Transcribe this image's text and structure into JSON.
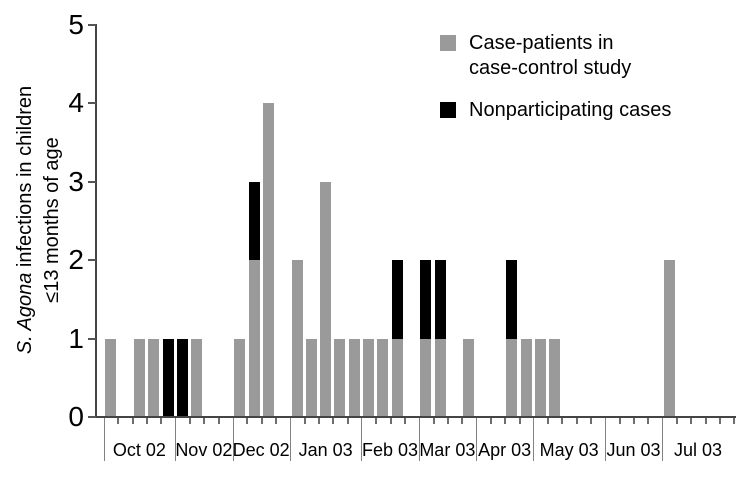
{
  "chart_data": {
    "type": "bar",
    "stacked": true,
    "title": "",
    "ylabel": {
      "line1_italic": "S. Agona",
      "line1_rest": " infections in children",
      "line2": "≤13 months of age"
    },
    "ylim": [
      0,
      5
    ],
    "y_ticks": [
      0,
      1,
      2,
      3,
      4,
      5
    ],
    "grid": false,
    "x_axis": {
      "unit": "week",
      "months": [
        {
          "label": "Oct 02",
          "weeks": 5
        },
        {
          "label": "Nov 02",
          "weeks": 4
        },
        {
          "label": "Dec 02",
          "weeks": 4
        },
        {
          "label": "Jan 03",
          "weeks": 5
        },
        {
          "label": "Feb 03",
          "weeks": 4
        },
        {
          "label": "Mar 03",
          "weeks": 4
        },
        {
          "label": "Apr 03",
          "weeks": 4
        },
        {
          "label": "May 03",
          "weeks": 5
        },
        {
          "label": "Jun 03",
          "weeks": 4
        },
        {
          "label": "Jul 03",
          "weeks": 5
        }
      ]
    },
    "series": [
      {
        "name": "Case-patients in case-control study",
        "color": "#9a9a9a",
        "values": [
          1,
          0,
          1,
          1,
          0,
          0,
          1,
          0,
          0,
          1,
          2,
          4,
          0,
          2,
          1,
          3,
          1,
          1,
          1,
          1,
          1,
          0,
          1,
          1,
          0,
          1,
          0,
          0,
          1,
          1,
          1,
          1,
          0,
          0,
          0,
          0,
          0,
          0,
          0,
          2,
          0,
          0,
          0,
          0
        ]
      },
      {
        "name": "Nonparticipating cases",
        "color": "#000000",
        "values": [
          0,
          0,
          0,
          0,
          1,
          1,
          0,
          0,
          0,
          0,
          1,
          0,
          0,
          0,
          0,
          0,
          0,
          0,
          0,
          0,
          1,
          0,
          1,
          1,
          0,
          0,
          0,
          0,
          1,
          0,
          0,
          0,
          0,
          0,
          0,
          0,
          0,
          0,
          0,
          0,
          0,
          0,
          0,
          0
        ]
      }
    ],
    "legend": {
      "position": "top-right",
      "items": [
        {
          "lines": [
            "Case-patients in",
            "case-control study"
          ]
        },
        {
          "lines": [
            "Nonparticipating cases"
          ]
        }
      ]
    }
  }
}
